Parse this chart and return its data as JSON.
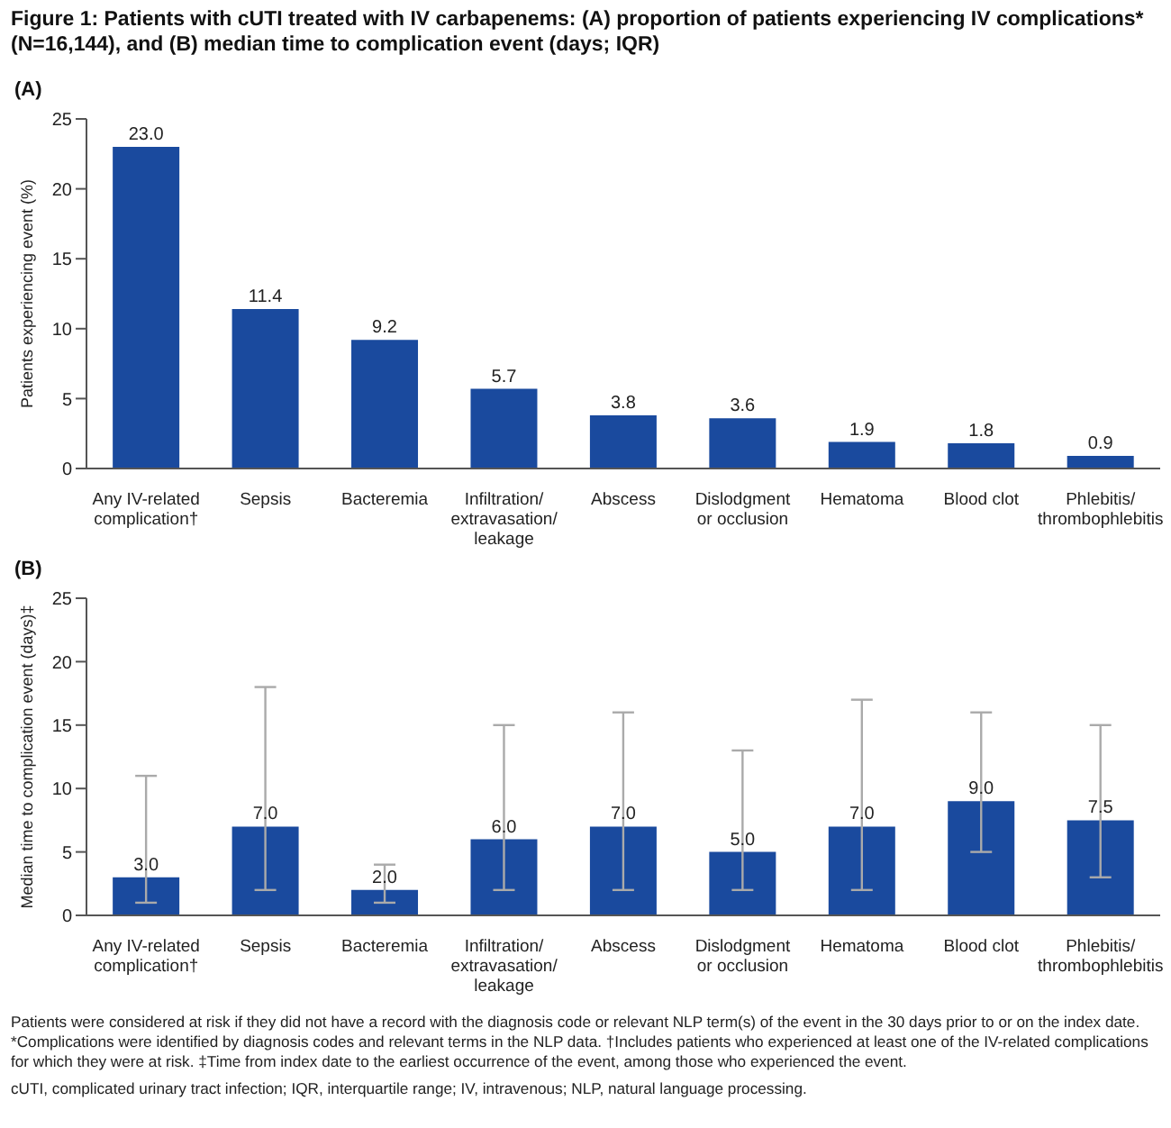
{
  "chart_data": [
    {
      "type": "bar",
      "title": "Figure 1: Patients with cUTI treated with IV carbapenems: (A) proportion of patients experiencing IV complications* (N=16,144), and (B) median time to complication event (days; IQR)",
      "subtitle": "(A)",
      "ylabel": "Patients experiencing event (%)",
      "categories": [
        "Any IV-related\ncomplication†",
        "Sepsis",
        "Bacteremia",
        "Infiltration/\nextravasation/\nleakage",
        "Abscess",
        "Dislodgment\nor occlusion",
        "Hematoma",
        "Blood clot",
        "Phlebitis/\nthrombophlebitis"
      ],
      "values": [
        23.0,
        11.4,
        9.2,
        5.7,
        3.8,
        3.6,
        1.9,
        1.8,
        0.9
      ],
      "value_labels": [
        "23.0",
        "11.4",
        "9.2",
        "5.7",
        "3.8",
        "3.6",
        "1.9",
        "1.8",
        "0.9"
      ],
      "color": "#1a4a9e",
      "ylim": [
        0,
        25
      ],
      "yticks": [
        0,
        5,
        10,
        15,
        20,
        25
      ],
      "grid": false,
      "legend": false
    },
    {
      "type": "bar",
      "subtitle": "(B)",
      "ylabel": "Median time to complication event (days)‡",
      "categories": [
        "Any IV-related\ncomplication†",
        "Sepsis",
        "Bacteremia",
        "Infiltration/\nextravasation/\nleakage",
        "Abscess",
        "Dislodgment\nor occlusion",
        "Hematoma",
        "Blood clot",
        "Phlebitis/\nthrombophlebitis"
      ],
      "values": [
        3.0,
        7.0,
        2.0,
        6.0,
        7.0,
        5.0,
        7.0,
        9.0,
        7.5
      ],
      "value_labels": [
        "3.0",
        "7.0",
        "2.0",
        "6.0",
        "7.0",
        "5.0",
        "7.0",
        "9.0",
        "7.5"
      ],
      "errors": [
        [
          1,
          11
        ],
        [
          2,
          18
        ],
        [
          1,
          4
        ],
        [
          2,
          15
        ],
        [
          2,
          16
        ],
        [
          2,
          13
        ],
        [
          2,
          17
        ],
        [
          5,
          16
        ],
        [
          3,
          15
        ]
      ],
      "color": "#1a4a9e",
      "ylim": [
        0,
        25
      ],
      "yticks": [
        0,
        5,
        10,
        15,
        20,
        25
      ],
      "grid": false,
      "legend": false,
      "annotations": [
        "Patients were considered at risk if they did not have a record with the diagnosis code or relevant NLP term(s) of the event in the 30 days prior to or on the index date. *Complications were identified by diagnosis codes and relevant terms in the NLP data. †Includes patients who experienced at least one of the IV-related complications for which they were at risk. ‡Time from index date to the earliest occurrence of the event, among those who experienced the event.",
        "cUTI, complicated urinary tract infection; IQR, interquartile range; IV, intravenous; NLP, natural language processing."
      ]
    }
  ]
}
